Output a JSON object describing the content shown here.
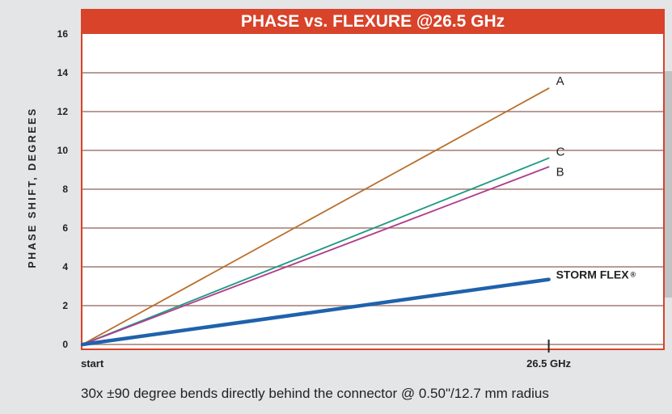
{
  "chart_data": {
    "type": "line",
    "title": "PHASE vs. FLEXURE @26.5 GHz",
    "ylabel": "PHASE SHIFT, DEGREES",
    "xlabel": "",
    "x_tick_labels": [
      "start",
      "26.5 GHz"
    ],
    "x": [
      0,
      26.5
    ],
    "xlim": [
      0,
      33
    ],
    "ylim": [
      0,
      16
    ],
    "y_ticks": [
      0,
      2,
      4,
      6,
      8,
      10,
      12,
      14,
      16
    ],
    "grid": true,
    "series": [
      {
        "name": "A",
        "color": "#b86f2c",
        "values": [
          0,
          13.2
        ]
      },
      {
        "name": "C",
        "color": "#1f9a82",
        "values": [
          0,
          9.6
        ]
      },
      {
        "name": "B",
        "color": "#b03c8e",
        "values": [
          0,
          9.15
        ]
      },
      {
        "name": "STORM FLEX",
        "suffix": "®",
        "color": "#1f62ac",
        "values": [
          0,
          3.35
        ]
      }
    ]
  },
  "caption": "30x ±90 degree bends directly behind the connector @ 0.50\"/12.7 mm radius",
  "colors": {
    "frame": "#d8432a",
    "plot_bg": "#ffffff",
    "grid": "#a07c74",
    "page_bg": "#e4e5e6",
    "right_accent": "#c0c2c4"
  }
}
